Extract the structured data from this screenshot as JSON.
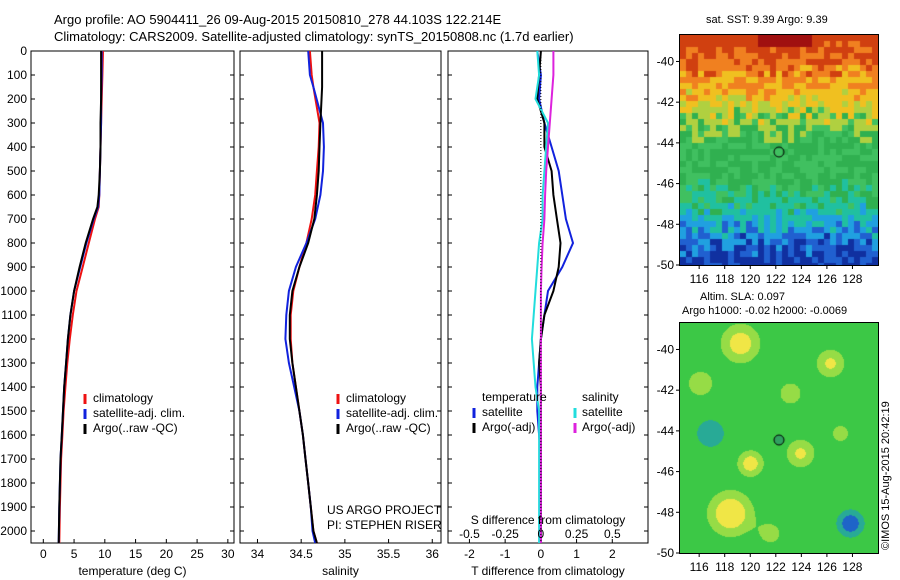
{
  "header": {
    "line1": "Argo profile: AO 5904411_26 09-Aug-2015 20150810_278 44.103S 122.214E",
    "line2": "Climatology: CARS2009. Satellite-adjusted climatology: synTS_20150808.nc (1.7d earlier)"
  },
  "watermark": "©IMOS 15-Aug-2015 20:42:19",
  "colors": {
    "climatology": "#ee1111",
    "satellite": "#1122dd",
    "argo": "#000000",
    "sat_salinity": "#22dddd",
    "argo_salinity_adj": "#dd22dd"
  },
  "chart_data": [
    {
      "type": "line",
      "name": "temperature-panel",
      "xlabel": "temperature (deg C)",
      "ylabel": "",
      "xlim": [
        -2,
        31
      ],
      "ylim": [
        2050,
        0
      ],
      "xticks": [
        "0",
        "5",
        "10",
        "15",
        "20",
        "25",
        "30"
      ],
      "xtick_values": [
        0,
        5,
        10,
        15,
        20,
        25,
        30
      ],
      "yticks": [
        "0",
        "100",
        "200",
        "300",
        "400",
        "500",
        "600",
        "700",
        "800",
        "900",
        "1000",
        "1100",
        "1200",
        "1300",
        "1400",
        "1500",
        "1600",
        "1700",
        "1800",
        "1900",
        "2000"
      ],
      "legend": [
        "climatology",
        "satellite-adj. clim.",
        "Argo(..raw -QC)"
      ],
      "series": [
        {
          "name": "climatology",
          "color": "#ee1111",
          "x": [
            9.7,
            9.6,
            9.5,
            9.4,
            9.3,
            9.2,
            9.1,
            9.0,
            8.4,
            7.4,
            6.4,
            5.4,
            4.8,
            4.3,
            3.9,
            3.6,
            3.3,
            3.1,
            2.9,
            2.8,
            2.7,
            2.6
          ],
          "y": [
            0,
            100,
            200,
            300,
            400,
            500,
            600,
            650,
            700,
            800,
            900,
            1000,
            1100,
            1200,
            1300,
            1400,
            1500,
            1600,
            1700,
            1800,
            1900,
            2050
          ]
        },
        {
          "name": "satellite-adj. clim.",
          "color": "#1122dd",
          "x": [
            9.5,
            9.5,
            9.4,
            9.4,
            9.3,
            9.2,
            9.1,
            8.9,
            8.2,
            7.0,
            6.0,
            5.0,
            4.4,
            4.0,
            3.7,
            3.4,
            3.2,
            3.0,
            2.8,
            2.7,
            2.6,
            2.5
          ],
          "y": [
            0,
            100,
            200,
            300,
            400,
            500,
            600,
            650,
            700,
            800,
            900,
            1000,
            1100,
            1200,
            1300,
            1400,
            1500,
            1600,
            1700,
            1800,
            1900,
            2050
          ]
        },
        {
          "name": "Argo(..raw -QC)",
          "color": "#000000",
          "x": [
            9.4,
            9.4,
            9.4,
            9.3,
            9.3,
            9.2,
            9.0,
            8.8,
            8.1,
            6.9,
            5.9,
            5.0,
            4.4,
            4.0,
            3.7,
            3.4,
            3.2,
            3.0,
            2.8,
            2.7,
            2.6,
            2.5
          ],
          "y": [
            0,
            100,
            200,
            300,
            400,
            500,
            600,
            650,
            700,
            800,
            900,
            1000,
            1100,
            1200,
            1300,
            1400,
            1500,
            1600,
            1700,
            1800,
            1900,
            2050
          ]
        }
      ]
    },
    {
      "type": "line",
      "name": "salinity-panel",
      "xlabel": "salinity",
      "xlim": [
        33.8,
        36.1
      ],
      "ylim": [
        2050,
        0
      ],
      "xticks": [
        "34",
        "34.5",
        "35",
        "35.5",
        "36"
      ],
      "xtick_values": [
        34,
        34.5,
        35,
        35.5,
        36
      ],
      "legend": [
        "climatology",
        "satellite-adj. clim.",
        "Argo(..raw -QC)"
      ],
      "annotation": [
        "US ARGO PROJECT",
        "PI: STEPHEN RISER"
      ],
      "series": [
        {
          "name": "climatology",
          "color": "#ee1111",
          "x": [
            34.6,
            34.62,
            34.64,
            34.71,
            34.7,
            34.68,
            34.66,
            34.62,
            34.56,
            34.48,
            34.41,
            34.38,
            34.38,
            34.4,
            34.44,
            34.48,
            34.52,
            34.55,
            34.58,
            34.61,
            34.64,
            34.68
          ],
          "y": [
            0,
            100,
            150,
            300,
            400,
            500,
            600,
            700,
            800,
            900,
            1000,
            1100,
            1200,
            1300,
            1400,
            1500,
            1600,
            1700,
            1800,
            1900,
            2000,
            2050
          ]
        },
        {
          "name": "satellite-adj. clim.",
          "color": "#1122dd",
          "x": [
            34.58,
            34.6,
            34.64,
            34.75,
            34.76,
            34.75,
            34.72,
            34.66,
            34.56,
            34.44,
            34.36,
            34.33,
            34.32,
            34.36,
            34.42,
            34.48,
            34.52,
            34.55,
            34.58,
            34.61,
            34.63,
            34.66
          ],
          "y": [
            0,
            100,
            150,
            300,
            400,
            500,
            600,
            700,
            800,
            900,
            1000,
            1100,
            1200,
            1300,
            1400,
            1500,
            1600,
            1700,
            1800,
            1900,
            2000,
            2050
          ]
        },
        {
          "name": "Argo(..raw -QC)",
          "color": "#000000",
          "x": [
            34.74,
            34.74,
            34.74,
            34.72,
            34.71,
            34.7,
            34.68,
            34.65,
            34.58,
            34.48,
            34.4,
            34.37,
            34.37,
            34.4,
            34.44,
            34.48,
            34.52,
            34.55,
            34.58,
            34.61,
            34.64,
            34.68
          ],
          "y": [
            0,
            100,
            150,
            300,
            400,
            500,
            600,
            700,
            800,
            900,
            1000,
            1100,
            1200,
            1300,
            1400,
            1500,
            1600,
            1700,
            1800,
            1900,
            2000,
            2050
          ]
        }
      ]
    },
    {
      "type": "line",
      "name": "difference-panel",
      "xlabel": "T difference from climatology",
      "xlabel_top": "S difference from climatology",
      "xlim": [
        -2.6,
        3.0
      ],
      "ylim": [
        2050,
        0
      ],
      "xticks": [
        "-2",
        "-1",
        "0",
        "1",
        "2"
      ],
      "xtick_values": [
        -2,
        -1,
        0,
        1,
        2
      ],
      "top_ticks": [
        "-0.5",
        "-0.25",
        "0",
        "0.25",
        "0.5"
      ],
      "top_tick_values": [
        -0.5,
        -0.25,
        0,
        0.25,
        0.5
      ],
      "legend_temperature": {
        "title": "temperature",
        "items": [
          "satellite",
          "Argo(-adj)"
        ]
      },
      "legend_salinity": {
        "title": "salinity",
        "items": [
          "satellite",
          "Argo(-adj)"
        ]
      },
      "series": [
        {
          "name": "satellite",
          "color": "#1122dd",
          "x": [
            -0.1,
            0.0,
            -0.05,
            0.1,
            0.3,
            0.5,
            0.6,
            0.7,
            0.9,
            0.6,
            0.2,
            0.1,
            0.0,
            -0.05,
            -0.1,
            -0.1,
            -0.05,
            0.0,
            0.0,
            0.0,
            0.0
          ],
          "y": [
            0,
            100,
            200,
            300,
            400,
            500,
            600,
            700,
            800,
            900,
            1000,
            1100,
            1200,
            1300,
            1400,
            1500,
            1600,
            1700,
            1800,
            1900,
            2050
          ]
        },
        {
          "name": "Argo(-adj)",
          "color": "#000000",
          "x": [
            0.0,
            -0.05,
            -0.1,
            0.1,
            0.1,
            0.3,
            0.35,
            0.45,
            0.55,
            0.5,
            0.35,
            0.1,
            0.0,
            -0.05,
            0.0,
            0.0,
            0.0,
            0.0,
            0.0,
            0.0,
            0.0
          ],
          "y": [
            0,
            100,
            200,
            300,
            400,
            500,
            600,
            700,
            800,
            900,
            1000,
            1100,
            1200,
            1300,
            1400,
            1500,
            1600,
            1700,
            1800,
            1900,
            2050
          ]
        },
        {
          "name": "satellite",
          "color": "#22dddd",
          "x": [
            -0.1,
            -0.05,
            -0.15,
            0.2,
            0.15,
            0.1,
            0.05,
            0.05,
            -0.05,
            -0.1,
            -0.15,
            -0.2,
            -0.25,
            -0.2,
            -0.15,
            -0.05,
            -0.05,
            -0.05,
            -0.05,
            -0.05,
            -0.05
          ],
          "y": [
            0,
            100,
            200,
            300,
            400,
            500,
            600,
            700,
            800,
            900,
            1000,
            1100,
            1200,
            1300,
            1400,
            1500,
            1600,
            1700,
            1800,
            1900,
            2050
          ]
        },
        {
          "name": "Argo(-adj)",
          "color": "#dd22dd",
          "x": [
            0.35,
            0.35,
            0.3,
            0.25,
            0.2,
            0.15,
            0.12,
            0.1,
            0.05,
            0.02,
            0.0,
            0.0,
            0.0,
            0.0,
            0.0,
            0.0,
            0.0,
            0.0,
            0.0,
            0.0,
            0.0
          ],
          "y": [
            0,
            100,
            200,
            300,
            400,
            500,
            600,
            700,
            800,
            900,
            1000,
            1100,
            1200,
            1300,
            1400,
            1500,
            1600,
            1700,
            1800,
            1900,
            2050
          ]
        }
      ]
    },
    {
      "type": "heatmap",
      "name": "sst-map",
      "title": "sat. SST: 9.39 Argo: 9.39",
      "xticks": [
        "116",
        "118",
        "120",
        "122",
        "124",
        "126",
        "128"
      ],
      "yticks": [
        "-40",
        "-42",
        "-44",
        "-46",
        "-48",
        "-50"
      ],
      "xlim": [
        114.5,
        130
      ],
      "ylim": [
        -50,
        -38.7
      ],
      "marker": {
        "lon": 122.2,
        "lat": -44.1
      }
    },
    {
      "type": "heatmap",
      "name": "sla-map",
      "title": "Altim. SLA: 0.097",
      "subtitle": "Argo h1000: -0.02 h2000: -0.0069",
      "xticks": [
        "116",
        "118",
        "120",
        "122",
        "124",
        "126",
        "128"
      ],
      "yticks": [
        "-40",
        "-42",
        "-44",
        "-46",
        "-48",
        "-50"
      ],
      "xlim": [
        114.5,
        130
      ],
      "ylim": [
        -50,
        -38.7
      ],
      "marker": {
        "lon": 122.2,
        "lat": -44.1
      }
    }
  ]
}
